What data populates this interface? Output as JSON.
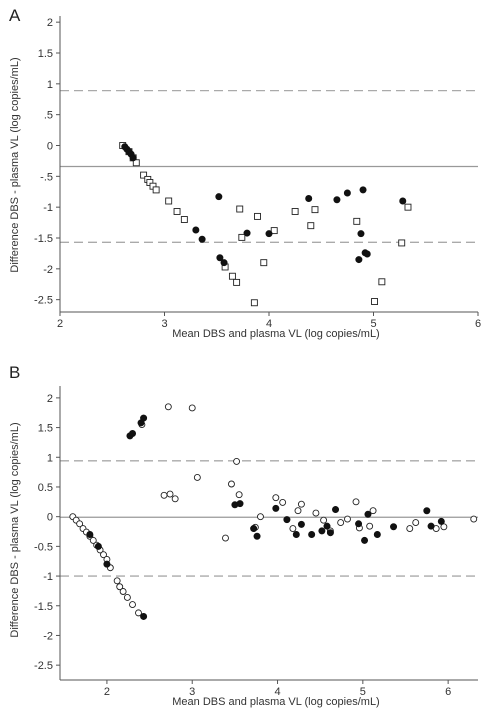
{
  "chart_data": [
    {
      "type": "scatter",
      "panel_label": "A",
      "xlabel": "Mean DBS and plasma VL (log copies/mL)",
      "ylabel": "Difference DBS - plasma VL (log copies/mL)",
      "xlim": [
        2,
        6
      ],
      "ylim": [
        -2.7,
        2.1
      ],
      "xticks": [
        2,
        3,
        4,
        5,
        6
      ],
      "xtick_labels": [
        "2",
        "3",
        "4",
        "5",
        "6"
      ],
      "yticks": [
        2,
        1.5,
        1,
        0.5,
        0,
        -0.5,
        -1,
        -1.5,
        -2,
        -2.5
      ],
      "ytick_labels": [
        "2",
        "1.5",
        "1",
        ".5",
        "0",
        "-.5",
        "-1",
        "-1.5",
        "-2",
        "-2.5"
      ],
      "reference_lines": {
        "mean": -0.34,
        "upper": 0.89,
        "lower": -1.57
      },
      "grid": false,
      "series": [
        {
          "marker": "filled-circle",
          "points": [
            [
              2.62,
              -0.02
            ],
            [
              2.64,
              -0.06
            ],
            [
              2.66,
              -0.1
            ],
            [
              2.68,
              -0.14
            ],
            [
              2.7,
              -0.2
            ],
            [
              3.3,
              -1.37
            ],
            [
              3.36,
              -1.52
            ],
            [
              3.52,
              -0.83
            ],
            [
              3.53,
              -1.82
            ],
            [
              3.57,
              -1.9
            ],
            [
              3.79,
              -1.42
            ],
            [
              4.0,
              -1.43
            ],
            [
              4.38,
              -0.86
            ],
            [
              4.65,
              -0.88
            ],
            [
              4.75,
              -0.77
            ],
            [
              4.86,
              -1.85
            ],
            [
              4.88,
              -1.43
            ],
            [
              4.9,
              -0.72
            ],
            [
              4.92,
              -1.74
            ],
            [
              4.94,
              -1.76
            ],
            [
              5.28,
              -0.9
            ]
          ]
        },
        {
          "marker": "open-square",
          "points": [
            [
              2.6,
              0.0
            ],
            [
              2.66,
              -0.1
            ],
            [
              2.7,
              -0.2
            ],
            [
              2.73,
              -0.28
            ],
            [
              2.8,
              -0.48
            ],
            [
              2.84,
              -0.55
            ],
            [
              2.86,
              -0.6
            ],
            [
              2.89,
              -0.66
            ],
            [
              2.92,
              -0.72
            ],
            [
              3.04,
              -0.9
            ],
            [
              3.12,
              -1.07
            ],
            [
              3.19,
              -1.2
            ],
            [
              3.58,
              -1.97
            ],
            [
              3.65,
              -2.12
            ],
            [
              3.69,
              -2.22
            ],
            [
              3.72,
              -1.03
            ],
            [
              3.74,
              -1.49
            ],
            [
              3.86,
              -2.55
            ],
            [
              3.89,
              -1.15
            ],
            [
              3.95,
              -1.9
            ],
            [
              4.05,
              -1.38
            ],
            [
              4.25,
              -1.07
            ],
            [
              4.4,
              -1.3
            ],
            [
              4.44,
              -1.04
            ],
            [
              4.84,
              -1.23
            ],
            [
              5.01,
              -2.53
            ],
            [
              5.08,
              -2.21
            ],
            [
              5.27,
              -1.58
            ],
            [
              5.33,
              -1.0
            ]
          ]
        }
      ]
    },
    {
      "type": "scatter",
      "panel_label": "B",
      "xlabel": "Mean DBS and plasma VL (log copies/mL)",
      "ylabel": "Difference DBS - plasma VL (log copies/mL)",
      "xlim": [
        1.45,
        6.35
      ],
      "ylim": [
        -2.75,
        2.2
      ],
      "xticks": [
        2,
        3,
        4,
        5,
        6
      ],
      "xtick_labels": [
        "2",
        "3",
        "4",
        "5",
        "6"
      ],
      "yticks": [
        2,
        1.5,
        1,
        0.5,
        0,
        -0.5,
        -1,
        -1.5,
        -2,
        -2.5
      ],
      "ytick_labels": [
        "2",
        "1.5",
        "1",
        "0.5",
        "0",
        "-0.5",
        "-1",
        "-1.5",
        "-2",
        "-2.5"
      ],
      "reference_lines": {
        "mean": -0.01,
        "upper": 0.94,
        "lower": -1.0
      },
      "grid": false,
      "series": [
        {
          "marker": "filled-circle",
          "points": [
            [
              1.8,
              -0.3
            ],
            [
              1.9,
              -0.5
            ],
            [
              2.0,
              -0.8
            ],
            [
              2.27,
              1.36
            ],
            [
              2.3,
              1.4
            ],
            [
              2.4,
              1.58
            ],
            [
              2.43,
              1.66
            ],
            [
              2.43,
              -1.68
            ],
            [
              3.5,
              0.2
            ],
            [
              3.56,
              0.22
            ],
            [
              3.72,
              -0.2
            ],
            [
              3.76,
              -0.33
            ],
            [
              3.98,
              0.14
            ],
            [
              4.11,
              -0.05
            ],
            [
              4.22,
              -0.3
            ],
            [
              4.28,
              -0.13
            ],
            [
              4.4,
              -0.3
            ],
            [
              4.52,
              -0.24
            ],
            [
              4.58,
              -0.16
            ],
            [
              4.62,
              -0.27
            ],
            [
              4.68,
              0.12
            ],
            [
              4.95,
              -0.12
            ],
            [
              5.02,
              -0.4
            ],
            [
              5.06,
              0.04
            ],
            [
              5.17,
              -0.3
            ],
            [
              5.36,
              -0.17
            ],
            [
              5.75,
              0.1
            ],
            [
              5.8,
              -0.16
            ],
            [
              5.92,
              -0.08
            ]
          ]
        },
        {
          "marker": "open-circle",
          "points": [
            [
              1.6,
              0.0
            ],
            [
              1.64,
              -0.06
            ],
            [
              1.68,
              -0.12
            ],
            [
              1.72,
              -0.2
            ],
            [
              1.76,
              -0.26
            ],
            [
              1.8,
              -0.33
            ],
            [
              1.84,
              -0.4
            ],
            [
              1.88,
              -0.48
            ],
            [
              1.92,
              -0.56
            ],
            [
              1.96,
              -0.64
            ],
            [
              2.0,
              -0.72
            ],
            [
              2.04,
              -0.86
            ],
            [
              2.12,
              -1.08
            ],
            [
              2.15,
              -1.18
            ],
            [
              2.19,
              -1.26
            ],
            [
              2.24,
              -1.36
            ],
            [
              2.3,
              -1.48
            ],
            [
              2.37,
              -1.62
            ],
            [
              2.41,
              1.55
            ],
            [
              2.67,
              0.36
            ],
            [
              2.72,
              1.85
            ],
            [
              2.74,
              0.38
            ],
            [
              2.8,
              0.3
            ],
            [
              3.0,
              1.83
            ],
            [
              3.06,
              0.66
            ],
            [
              3.39,
              -0.36
            ],
            [
              3.46,
              0.55
            ],
            [
              3.52,
              0.93
            ],
            [
              3.55,
              0.37
            ],
            [
              3.74,
              -0.18
            ],
            [
              3.8,
              0.0
            ],
            [
              3.98,
              0.32
            ],
            [
              4.06,
              0.24
            ],
            [
              4.18,
              -0.2
            ],
            [
              4.24,
              0.1
            ],
            [
              4.28,
              0.21
            ],
            [
              4.45,
              0.06
            ],
            [
              4.54,
              -0.06
            ],
            [
              4.62,
              -0.24
            ],
            [
              4.74,
              -0.1
            ],
            [
              4.82,
              -0.04
            ],
            [
              4.92,
              0.25
            ],
            [
              4.96,
              -0.19
            ],
            [
              5.08,
              -0.16
            ],
            [
              5.12,
              0.1
            ],
            [
              5.55,
              -0.2
            ],
            [
              5.62,
              -0.1
            ],
            [
              5.86,
              -0.2
            ],
            [
              5.95,
              -0.17
            ],
            [
              6.3,
              -0.04
            ]
          ]
        }
      ]
    }
  ]
}
